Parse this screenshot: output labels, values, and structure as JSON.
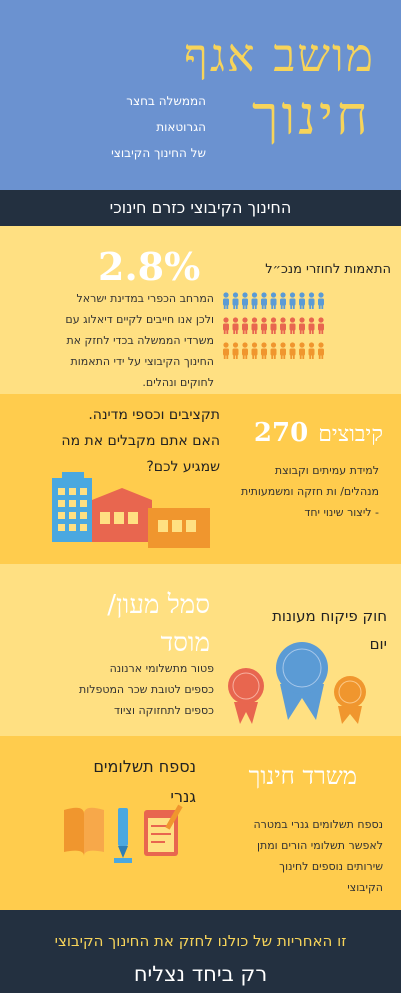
{
  "header": {
    "title_line1": "מושב אגף",
    "title_line2": "חינוך",
    "subtitle_lines": [
      "הממשלה בחצר",
      "הגרוטאות",
      "של החינוך הקיבוצי"
    ]
  },
  "banner": {
    "text": "החינוך הקיבוצי כזרם חינוכי"
  },
  "section1": {
    "stat": "2.8%",
    "heading": "התאמות לחוזרי מנכ״ל",
    "body_lines": [
      "המרחב הכפרי במדינת ישראל",
      "ולכן אנו חייבים לקיים דיאלוג עם",
      "משרדי הממשלה בכדי לחזק את",
      "החינוך הקיבוצי על ידי התאמות",
      "לחוקים ונהלים."
    ]
  },
  "section2": {
    "heading_lines": [
      "תקציבים וכספי מדינה.",
      "האם אתם מקבלים את מה",
      "שמגיע לכם?"
    ],
    "stat_number": "270",
    "stat_label": "קיבוצים",
    "body_lines": [
      "למידת עמיתים וקבוצת",
      "מנהלים/ ות חזקה ומשמעותית",
      "- ליצור שינוי יחד"
    ]
  },
  "section3": {
    "title_lines": [
      "סמל מעון/",
      "מוסד"
    ],
    "body_lines": [
      "פטור מתשלומי ארנונה",
      "כספים לטובת שכר המטפלות",
      "כספים לתחזוקה וציוד"
    ],
    "law_lines": [
      "חוק פיקוח מעונות",
      "יום"
    ]
  },
  "section4": {
    "left_title_lines": [
      "נספח תשלומים",
      "גנרי"
    ],
    "right_title": "משרד חינוך",
    "body_lines": [
      "נספח תשלומים גנרי במטרה",
      "לאפשר תשלומי הורים ומתן",
      "שירותים נוספים לחינוך",
      "הקיבוצי"
    ]
  },
  "footer": {
    "line1": "זו האחריות של כולנו לחזק את החינוך הקיבוצי",
    "line2": "רק ביחד נצליח"
  },
  "colors": {
    "blue": "#6b92d0",
    "dark": "#233040",
    "yellow_light": "#ffe082",
    "yellow_dark": "#ffcc4d",
    "accent_title": "#f7d45a",
    "people_blue": "#5b9bd5",
    "people_red": "#e8664f",
    "people_orange": "#f0962e"
  }
}
